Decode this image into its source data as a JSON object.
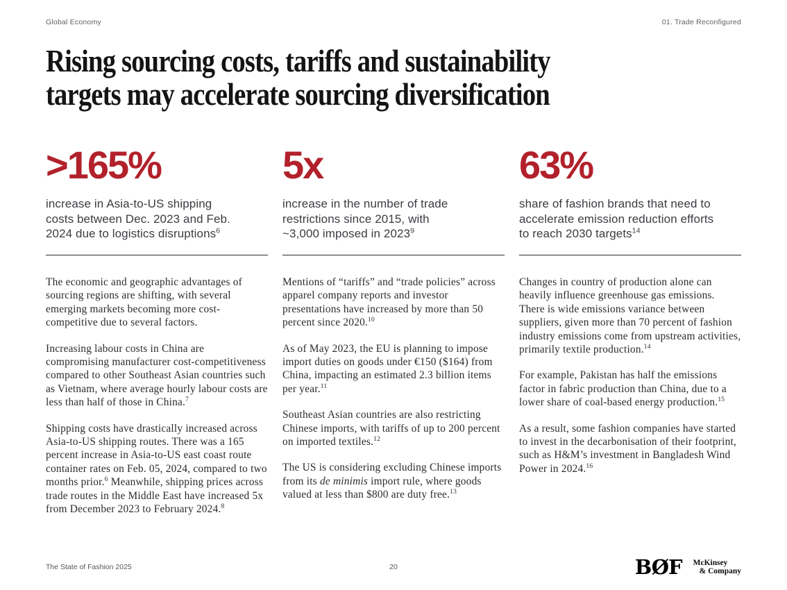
{
  "colors": {
    "accent_red": "#B2212B",
    "title_text": "#141414",
    "body_text": "#2B2B2B",
    "muted_text": "#5F5F5F"
  },
  "header": {
    "left": "Global Economy",
    "right": "01. Trade Reconfigured"
  },
  "title": {
    "line1": "Rising sourcing costs, tariffs and sustainability",
    "line2": "targets may accelerate sourcing diversification"
  },
  "columns": [
    {
      "stat": ">165%",
      "subhead_lines": [
        "increase in Asia-to-US shipping",
        "costs between Dec. 2023 and Feb.",
        "2024 due to logistics disruptions"
      ],
      "subhead_sup": "6",
      "paragraphs": [
        [
          {
            "t": "The economic and geographic advantages of sourcing regions are shifting, with several emerging markets becoming more cost-competitive due to several factors."
          }
        ],
        [
          {
            "t": "Increasing labour costs in China are compromising manufacturer cost-competitiveness compared to other Southeast Asian countries such as Vietnam, where average hourly labour costs are less than half of those in China."
          },
          {
            "t": "7",
            "sup": true
          }
        ],
        [
          {
            "t": "Shipping costs have drastically increased across Asia-to-US shipping routes. There was a 165 percent increase in Asia-to-US east coast route container rates on Feb. 05, 2024, compared to two months prior."
          },
          {
            "t": "6",
            "sup": true
          },
          {
            "t": " Meanwhile, shipping prices across trade routes in the Middle East have increased 5x from December 2023 to February 2024."
          },
          {
            "t": "8",
            "sup": true
          }
        ]
      ]
    },
    {
      "stat": "5x",
      "subhead_lines": [
        "increase in the number of trade",
        "restrictions since 2015, with",
        "~3,000 imposed in 2023"
      ],
      "subhead_sup": "9",
      "paragraphs": [
        [
          {
            "t": "Mentions of “tariffs” and “trade policies” across apparel company reports and investor presentations have increased by more than 50 percent since 2020."
          },
          {
            "t": "10",
            "sup": true
          }
        ],
        [
          {
            "t": "As of May 2023, the EU is planning to impose import duties on goods under €150 ($164) from China, impacting an estimated 2.3 billion items per year."
          },
          {
            "t": "11",
            "sup": true
          }
        ],
        [
          {
            "t": "Southeast Asian countries are also restricting Chinese imports, with tariffs of up to 200 percent on imported textiles."
          },
          {
            "t": "12",
            "sup": true
          }
        ],
        [
          {
            "t": "The US is considering excluding Chinese imports from its "
          },
          {
            "t": "de minimis",
            "i": true
          },
          {
            "t": " import rule, where goods valued at less than $800 are duty free."
          },
          {
            "t": "13",
            "sup": true
          }
        ]
      ]
    },
    {
      "stat": "63%",
      "subhead_lines": [
        "share of fashion brands that need to",
        "accelerate emission reduction efforts",
        "to reach 2030 targets"
      ],
      "subhead_sup": "14",
      "paragraphs": [
        [
          {
            "t": "Changes in country of production alone can heavily influence greenhouse gas emissions. There is wide emissions variance between suppliers, given more than 70 percent of fashion industry emissions come from upstream activities, primarily textile production."
          },
          {
            "t": "14",
            "sup": true
          }
        ],
        [
          {
            "t": "For example, Pakistan has half the emissions factor in fabric production than China, due to a lower share of coal-based energy production."
          },
          {
            "t": "15",
            "sup": true
          }
        ],
        [
          {
            "t": "As a result, some fashion companies have started to invest in the decarbonisation of their footprint, such as H&M’s investment in Bangladesh Wind Power in 2024."
          },
          {
            "t": "16",
            "sup": true
          }
        ]
      ]
    }
  ],
  "footer": {
    "left": "The State of Fashion 2025",
    "page_number": "20",
    "bof_logo": "BØF",
    "mckinsey_logo": {
      "line1": "McKinsey",
      "line2": "& Company"
    }
  }
}
